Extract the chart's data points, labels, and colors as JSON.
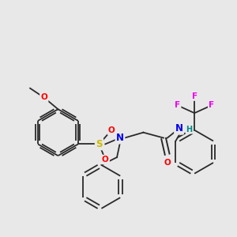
{
  "background_color": "#e8e8e8",
  "bond_color": "#2a2a2a",
  "atom_colors": {
    "O": "#ff0000",
    "N": "#0000ee",
    "S": "#ccbb00",
    "F": "#ee00ee",
    "H": "#008888",
    "C": "#2a2a2a"
  },
  "figsize": [
    3.0,
    3.0
  ],
  "dpi": 100
}
